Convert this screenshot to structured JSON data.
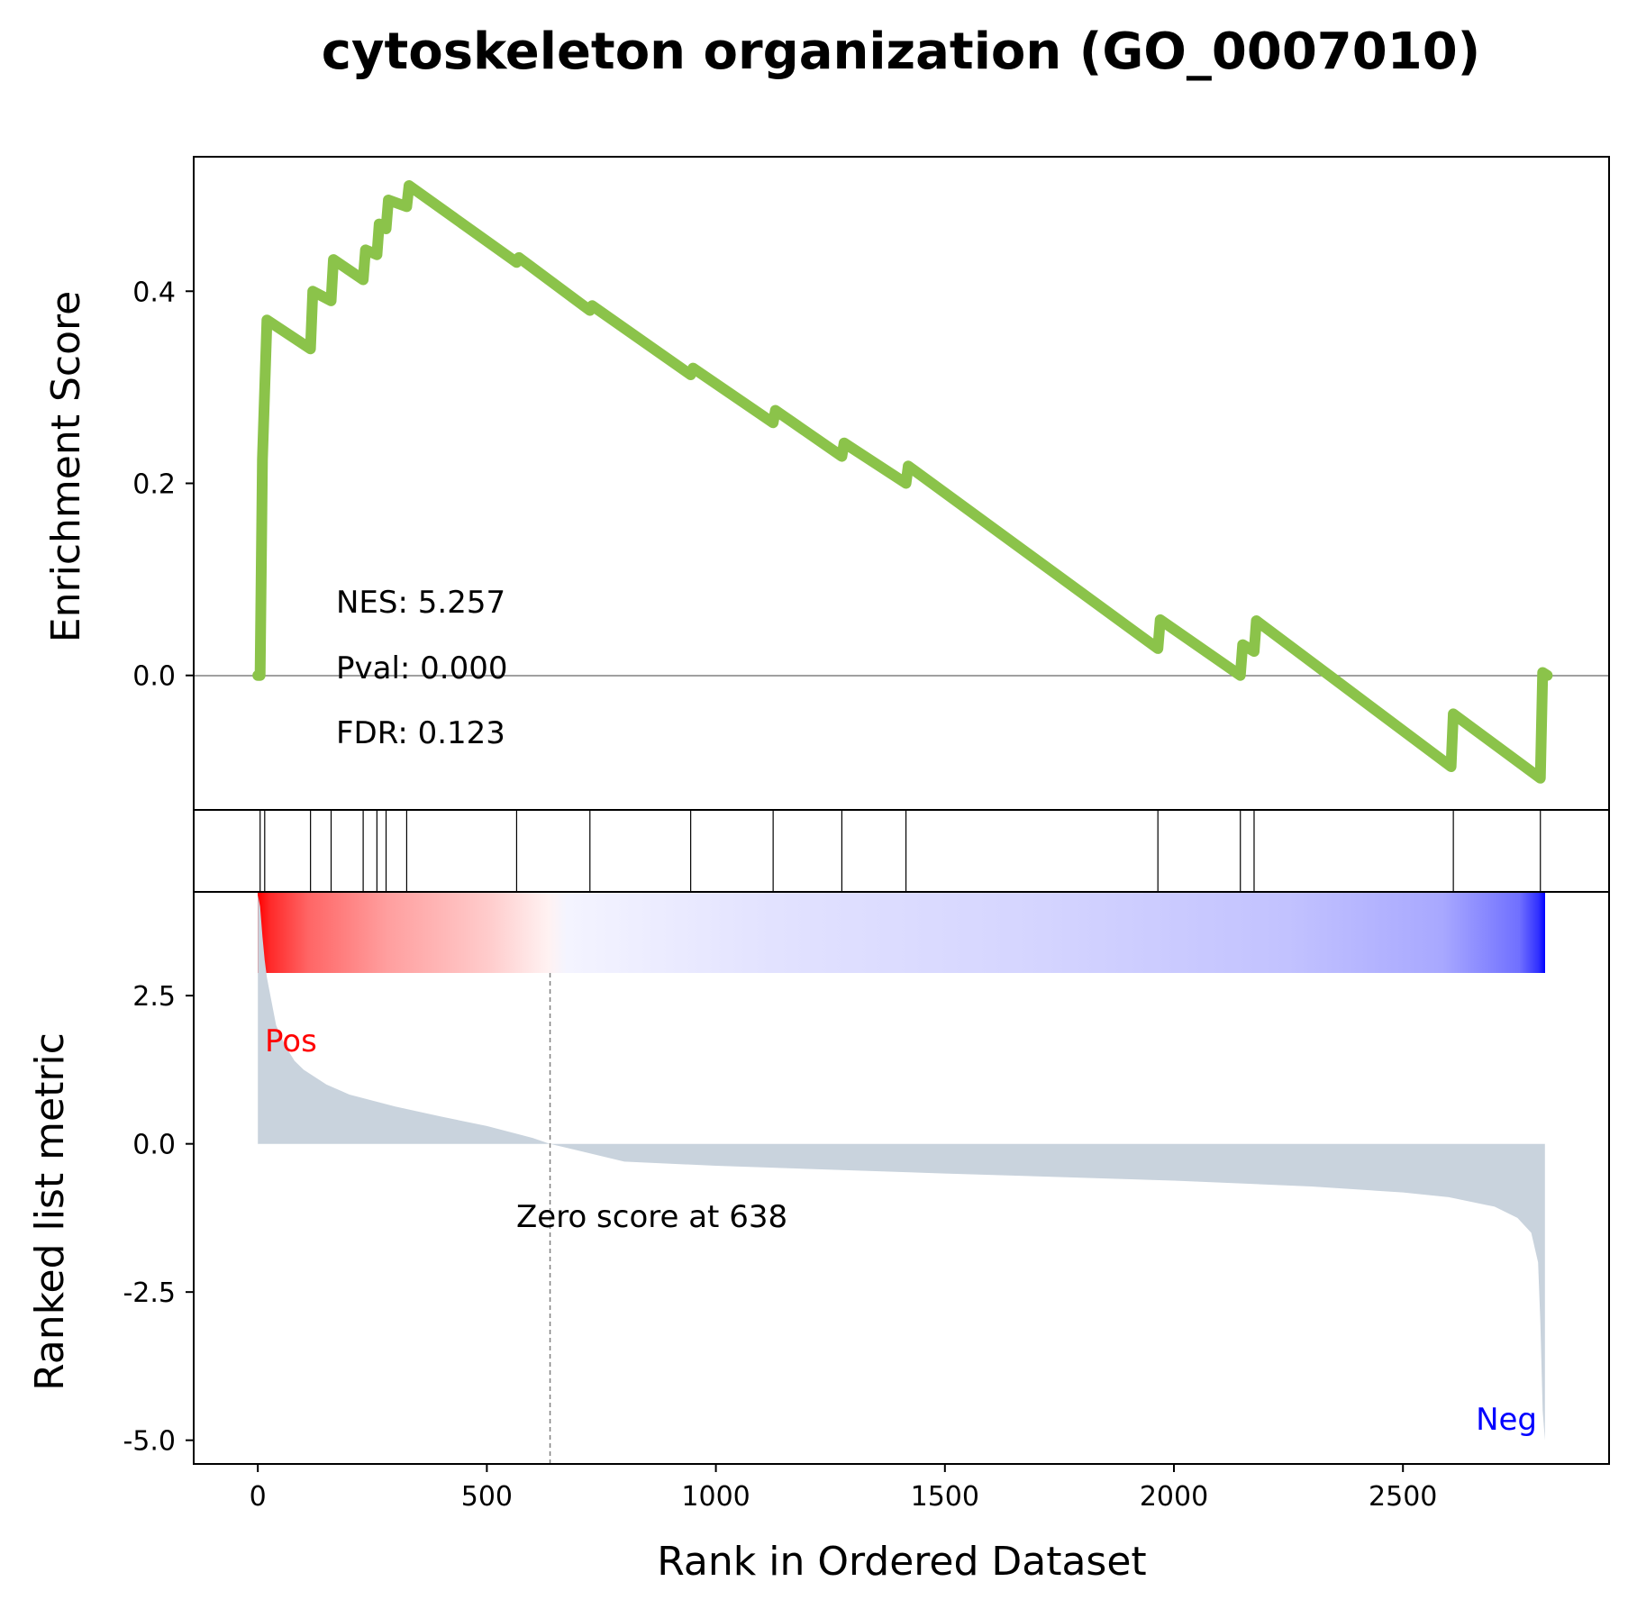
{
  "chart_data": {
    "type": "line",
    "title": "cytoskeleton organization (GO_0007010)",
    "es_panel": {
      "ylabel": "Enrichment Score",
      "ylim": [
        -0.14,
        0.54
      ],
      "yticks": [
        0.0,
        0.2,
        0.4
      ],
      "ytick_labels": [
        "0.0",
        "0.2",
        "0.4"
      ],
      "line_color": "#8bc34a",
      "stats": {
        "nes": "NES: 5.257",
        "pval": "Pval: 0.000",
        "fdr": "FDR: 0.123"
      },
      "series": [
        {
          "x": [
            0,
            5,
            10,
            20,
            115,
            120,
            160,
            165,
            230,
            235,
            260,
            265,
            280,
            285,
            325,
            330,
            565,
            570,
            725,
            730,
            945,
            950,
            1125,
            1130,
            1275,
            1280,
            1415,
            1420,
            1965,
            1970,
            2145,
            2150,
            2175,
            2180,
            2605,
            2610,
            2800,
            2805,
            2815
          ],
          "y": [
            0.0,
            0.0,
            0.225,
            0.37,
            0.34,
            0.4,
            0.39,
            0.433,
            0.412,
            0.443,
            0.438,
            0.47,
            0.465,
            0.495,
            0.488,
            0.51,
            0.43,
            0.435,
            0.38,
            0.385,
            0.313,
            0.32,
            0.263,
            0.276,
            0.228,
            0.242,
            0.2,
            0.218,
            0.028,
            0.058,
            0.0,
            0.032,
            0.025,
            0.057,
            -0.095,
            -0.04,
            -0.107,
            0.003,
            0.0
          ]
        }
      ]
    },
    "hits": [
      5,
      15,
      115,
      160,
      230,
      260,
      280,
      325,
      565,
      725,
      945,
      1125,
      1275,
      1415,
      1965,
      2145,
      2175,
      2610,
      2800
    ],
    "metric_panel": {
      "ylabel": "Ranked list metric",
      "xlabel": "Rank in Ordered Dataset",
      "xlim": [
        -140,
        2950
      ],
      "ylim": [
        -5.4,
        4.25
      ],
      "xticks": [
        0,
        500,
        1000,
        1500,
        2000,
        2500
      ],
      "xtick_labels": [
        "0",
        "500",
        "1000",
        "1500",
        "2000",
        "2500"
      ],
      "yticks": [
        2.5,
        0.0,
        -2.5,
        -5.0
      ],
      "ytick_labels": [
        "2.5",
        "0.0",
        "-2.5",
        "-5.0"
      ],
      "fill_color": "#c9d3dd",
      "zero_score_text": "Zero score at 638",
      "zero_rank": 638,
      "pos_label": "Pos",
      "neg_label": "Neg",
      "pos_color": "#ff0000",
      "neg_color": "#0000ff",
      "curve": {
        "x": [
          0,
          5,
          10,
          15,
          20,
          30,
          40,
          60,
          80,
          100,
          150,
          200,
          300,
          400,
          500,
          600,
          638,
          800,
          1000,
          1500,
          2000,
          2300,
          2500,
          2600,
          2700,
          2750,
          2780,
          2795,
          2800,
          2805,
          2810
        ],
        "y": [
          4.2,
          4.0,
          3.5,
          3.1,
          2.8,
          2.4,
          2.0,
          1.65,
          1.4,
          1.25,
          1.0,
          0.83,
          0.63,
          0.46,
          0.3,
          0.1,
          0.0,
          -0.3,
          -0.37,
          -0.5,
          -0.62,
          -0.72,
          -0.82,
          -0.9,
          -1.06,
          -1.25,
          -1.5,
          -2.0,
          -3.0,
          -4.5,
          -5.0
        ]
      }
    }
  }
}
